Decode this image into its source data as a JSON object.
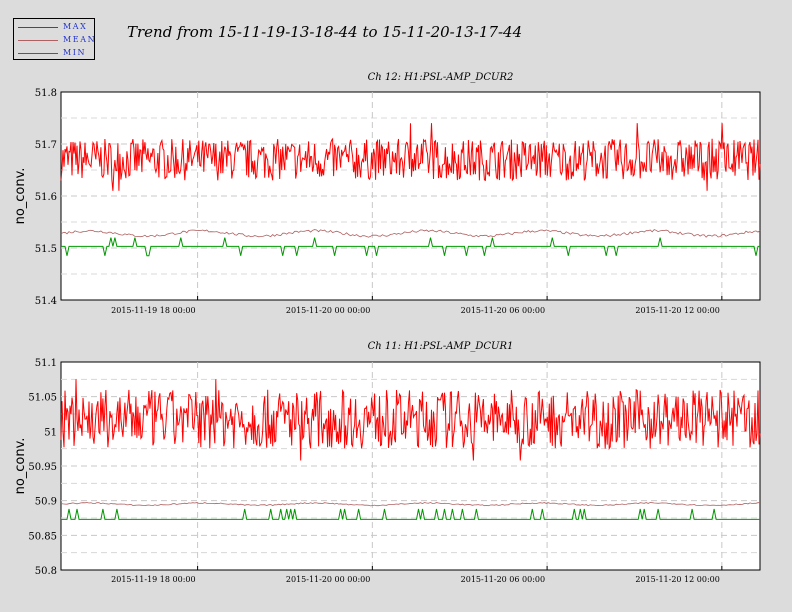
{
  "title": "Trend from 15-11-19-13-18-44 to 15-11-20-13-17-44",
  "legend": [
    {
      "label": "MAX",
      "color": "#ff0000"
    },
    {
      "label": "MEAN",
      "color": "#b06060"
    },
    {
      "label": "MIN",
      "color": "#009900"
    }
  ],
  "chart_data": [
    {
      "type": "line",
      "title": "Ch 12: H1:PSL-AMP_DCUR2",
      "ylabel": "no_conv.",
      "xlabel": "",
      "ylim": [
        51.4,
        51.8
      ],
      "yticks": [
        "51.8",
        "51.7",
        "51.6",
        "51.5",
        "51.4"
      ],
      "xticks": [
        "2015-11-19 18 00:00",
        "2015-11-20 00 00:00",
        "2015-11-20 06 00:00",
        "2015-11-20 12 00:00"
      ],
      "xrange_hours": [
        0,
        24
      ],
      "xtick_hours": [
        4.69,
        10.69,
        16.69,
        22.69
      ],
      "grid": true,
      "series": [
        {
          "name": "MAX",
          "color": "#ff0000",
          "center": 51.66,
          "band": [
            51.63,
            51.71
          ],
          "spikes": [
            51.74,
            51.61
          ]
        },
        {
          "name": "MEAN",
          "color": "#b06060",
          "center": 51.528,
          "band": [
            51.52,
            51.535
          ]
        },
        {
          "name": "MIN",
          "color": "#009900",
          "center": 51.503,
          "band": [
            51.485,
            51.52
          ]
        }
      ]
    },
    {
      "type": "line",
      "title": "Ch 11: H1:PSL-AMP_DCUR1",
      "ylabel": "no_conv.",
      "xlabel": "",
      "ylim": [
        50.8,
        51.1
      ],
      "yticks": [
        "51.1",
        "51.05",
        "51",
        "50.95",
        "50.9",
        "50.85",
        "50.8"
      ],
      "xticks": [
        "2015-11-19 18 00:00",
        "2015-11-20 00 00:00",
        "2015-11-20 06 00:00",
        "2015-11-20 12 00:00"
      ],
      "xrange_hours": [
        0,
        24
      ],
      "xtick_hours": [
        4.69,
        10.69,
        16.69,
        22.69
      ],
      "grid": true,
      "series": [
        {
          "name": "MAX",
          "color": "#ff0000",
          "center": 51.0,
          "band": [
            50.975,
            51.06
          ],
          "spikes": [
            51.075,
            50.958
          ]
        },
        {
          "name": "MEAN",
          "color": "#b06060",
          "center": 50.895,
          "band": [
            50.893,
            50.898
          ]
        },
        {
          "name": "MIN",
          "color": "#009900",
          "center": 50.873,
          "band": [
            50.873,
            50.888
          ]
        }
      ]
    }
  ]
}
